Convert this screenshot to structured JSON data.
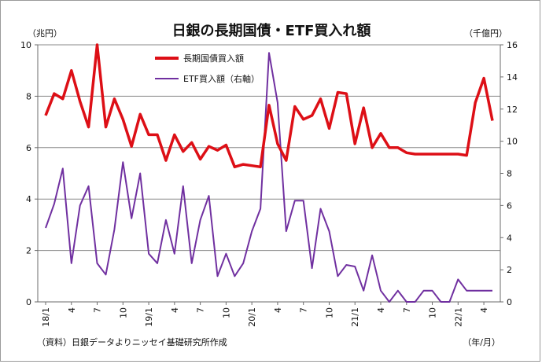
{
  "chart_data": {
    "type": "line",
    "title": "日銀の長期国債・ETF買入れ額",
    "left_axis_unit": "（兆円）",
    "right_axis_unit": "（千億円）",
    "x_axis_unit": "（年/月）",
    "source_note": "（資料）日銀データよりニッセイ基礎研究所作成",
    "x_tick_labels": [
      "18/1",
      "4",
      "7",
      "10",
      "19/1",
      "4",
      "7",
      "10",
      "20/1",
      "4",
      "7",
      "10",
      "21/1",
      "4",
      "7",
      "10",
      "22/1",
      "4"
    ],
    "x_tick_months": [
      "2018-01",
      "2018-04",
      "2018-07",
      "2018-10",
      "2019-01",
      "2019-04",
      "2019-07",
      "2019-10",
      "2020-01",
      "2020-04",
      "2020-07",
      "2020-10",
      "2021-01",
      "2021-04",
      "2021-07",
      "2021-10",
      "2022-01",
      "2022-04"
    ],
    "left_y": {
      "min": 0,
      "max": 10,
      "ticks": [
        "0",
        "2",
        "4",
        "6",
        "8",
        "10"
      ]
    },
    "right_y": {
      "min": 0,
      "max": 16,
      "ticks": [
        "0",
        "2",
        "4",
        "6",
        "8",
        "10",
        "12",
        "14",
        "16"
      ]
    },
    "grid": true,
    "legend_position": "top-center",
    "colors": {
      "jgb": "#dd0f16",
      "etf": "#7030a0",
      "grid": "#8a8a8a",
      "axis": "#6b6b6b"
    },
    "months": [
      "2018-01",
      "2018-02",
      "2018-03",
      "2018-04",
      "2018-05",
      "2018-06",
      "2018-07",
      "2018-08",
      "2018-09",
      "2018-10",
      "2018-11",
      "2018-12",
      "2019-01",
      "2019-02",
      "2019-03",
      "2019-04",
      "2019-05",
      "2019-06",
      "2019-07",
      "2019-08",
      "2019-09",
      "2019-10",
      "2019-11",
      "2019-12",
      "2020-01",
      "2020-02",
      "2020-03",
      "2020-04",
      "2020-05",
      "2020-06",
      "2020-07",
      "2020-08",
      "2020-09",
      "2020-10",
      "2020-11",
      "2020-12",
      "2021-01",
      "2021-02",
      "2021-03",
      "2021-04",
      "2021-05",
      "2021-06",
      "2021-07",
      "2021-08",
      "2021-09",
      "2021-10",
      "2021-11",
      "2021-12",
      "2022-01",
      "2022-02",
      "2022-03",
      "2022-04",
      "2022-05"
    ],
    "series": [
      {
        "name": "長期国債買入額",
        "axis": "left",
        "values": [
          7.25,
          8.1,
          7.9,
          9.0,
          7.8,
          6.8,
          10.0,
          6.8,
          7.9,
          7.1,
          6.05,
          7.3,
          6.5,
          6.5,
          5.5,
          6.5,
          5.85,
          6.2,
          5.55,
          6.05,
          5.9,
          6.1,
          5.25,
          5.35,
          5.3,
          5.25,
          7.65,
          6.15,
          5.5,
          7.6,
          7.1,
          7.25,
          7.9,
          6.75,
          8.15,
          8.1,
          6.15,
          7.55,
          6.0,
          6.55,
          6.0,
          6.0,
          5.8,
          5.75,
          5.75,
          5.75,
          5.75,
          5.75,
          5.75,
          5.7,
          7.75,
          8.7,
          7.05
        ]
      },
      {
        "name": "ETF買入額（右軸）",
        "axis": "right",
        "values": [
          4.6,
          6.1,
          8.3,
          2.4,
          6.0,
          7.2,
          2.4,
          1.7,
          4.5,
          8.7,
          5.2,
          8.0,
          3.0,
          2.4,
          5.1,
          3.0,
          7.2,
          2.4,
          5.1,
          6.6,
          1.6,
          3.0,
          1.6,
          2.4,
          4.4,
          5.8,
          15.5,
          12.4,
          4.4,
          6.3,
          6.3,
          2.1,
          5.8,
          4.4,
          1.6,
          2.3,
          2.2,
          0.7,
          2.9,
          0.7,
          0.0,
          0.7,
          0.0,
          0.0,
          0.7,
          0.7,
          0.0,
          0.0,
          1.4,
          0.7,
          0.7,
          0.7,
          0.7
        ]
      }
    ]
  }
}
